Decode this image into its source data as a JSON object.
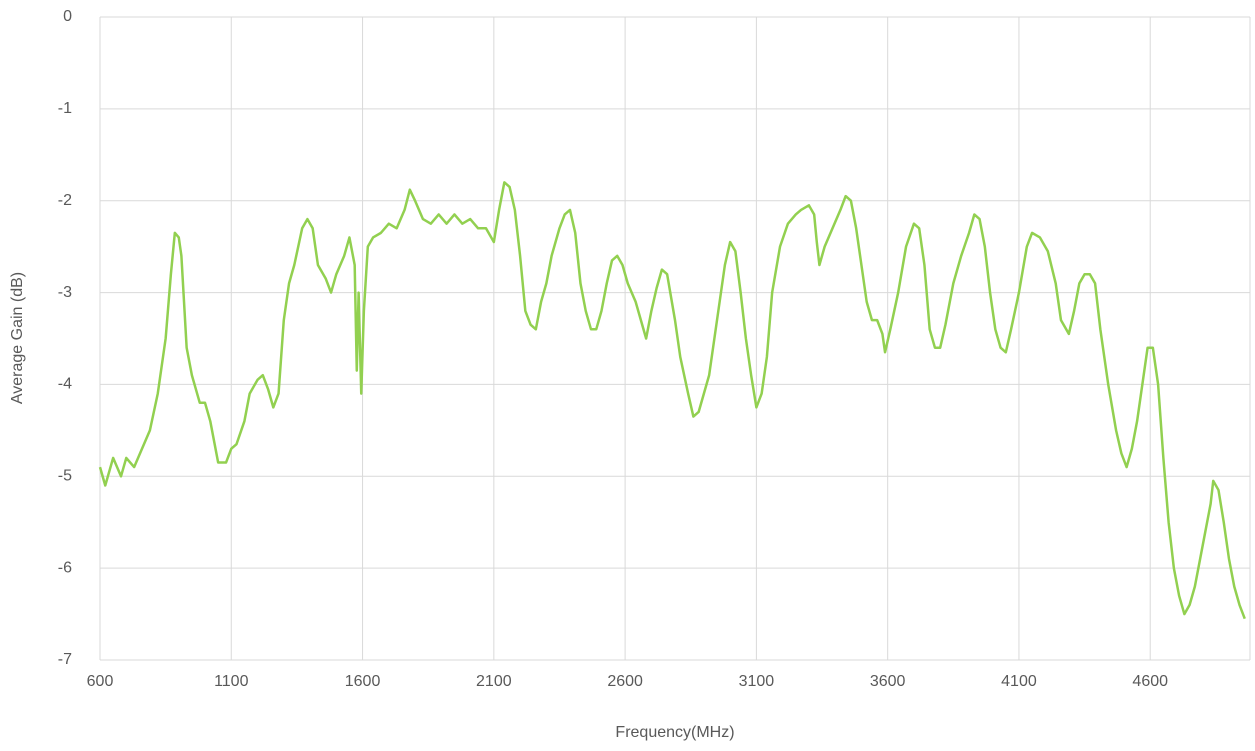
{
  "chart_data": {
    "type": "line",
    "x_label": "Frequency(MHz)",
    "y_label": "Average Gain (dB)",
    "xlim": [
      600,
      4980
    ],
    "xticks": [
      600,
      1100,
      1600,
      2100,
      2600,
      3100,
      3600,
      4100,
      4600
    ],
    "ylim": [
      -7,
      0
    ],
    "yticks": [
      0,
      -1,
      -2,
      -3,
      -4,
      -5,
      -6,
      -7
    ],
    "grid": true,
    "color": "#92d050",
    "x": [
      600,
      620,
      650,
      680,
      700,
      730,
      760,
      790,
      820,
      850,
      870,
      885,
      900,
      910,
      930,
      950,
      980,
      1000,
      1020,
      1050,
      1080,
      1100,
      1120,
      1150,
      1170,
      1200,
      1220,
      1240,
      1260,
      1280,
      1300,
      1320,
      1340,
      1370,
      1390,
      1410,
      1430,
      1460,
      1480,
      1500,
      1530,
      1550,
      1570,
      1578,
      1585,
      1595,
      1605,
      1620,
      1640,
      1670,
      1700,
      1730,
      1760,
      1780,
      1800,
      1830,
      1860,
      1890,
      1920,
      1950,
      1980,
      2010,
      2040,
      2070,
      2100,
      2120,
      2140,
      2160,
      2180,
      2200,
      2220,
      2240,
      2260,
      2280,
      2300,
      2320,
      2350,
      2370,
      2390,
      2410,
      2430,
      2450,
      2470,
      2490,
      2510,
      2530,
      2550,
      2570,
      2590,
      2610,
      2640,
      2660,
      2680,
      2700,
      2720,
      2740,
      2760,
      2790,
      2810,
      2840,
      2860,
      2880,
      2900,
      2920,
      2950,
      2980,
      3000,
      3020,
      3040,
      3060,
      3080,
      3100,
      3120,
      3140,
      3160,
      3190,
      3220,
      3250,
      3270,
      3300,
      3320,
      3330,
      3340,
      3360,
      3390,
      3420,
      3440,
      3460,
      3480,
      3500,
      3520,
      3540,
      3560,
      3580,
      3590,
      3610,
      3640,
      3670,
      3700,
      3720,
      3740,
      3760,
      3780,
      3800,
      3820,
      3850,
      3880,
      3910,
      3930,
      3950,
      3970,
      3990,
      4010,
      4030,
      4050,
      4070,
      4100,
      4130,
      4150,
      4180,
      4210,
      4240,
      4260,
      4290,
      4310,
      4330,
      4350,
      4370,
      4390,
      4410,
      4440,
      4470,
      4490,
      4510,
      4530,
      4550,
      4570,
      4590,
      4610,
      4630,
      4650,
      4670,
      4690,
      4710,
      4730,
      4750,
      4770,
      4790,
      4810,
      4830,
      4840,
      4860,
      4880,
      4900,
      4920,
      4940,
      4960
    ],
    "values": [
      -4.9,
      -5.1,
      -4.8,
      -5.0,
      -4.8,
      -4.9,
      -4.7,
      -4.5,
      -4.1,
      -3.5,
      -2.8,
      -2.35,
      -2.4,
      -2.6,
      -3.6,
      -3.9,
      -4.2,
      -4.2,
      -4.4,
      -4.85,
      -4.85,
      -4.7,
      -4.65,
      -4.4,
      -4.1,
      -3.95,
      -3.9,
      -4.05,
      -4.25,
      -4.1,
      -3.3,
      -2.9,
      -2.7,
      -2.3,
      -2.2,
      -2.3,
      -2.7,
      -2.85,
      -3.0,
      -2.8,
      -2.6,
      -2.4,
      -2.7,
      -3.85,
      -3.0,
      -4.1,
      -3.2,
      -2.5,
      -2.4,
      -2.35,
      -2.25,
      -2.3,
      -2.1,
      -1.88,
      -2.0,
      -2.2,
      -2.25,
      -2.15,
      -2.25,
      -2.15,
      -2.25,
      -2.2,
      -2.3,
      -2.3,
      -2.45,
      -2.1,
      -1.8,
      -1.85,
      -2.1,
      -2.6,
      -3.2,
      -3.35,
      -3.4,
      -3.1,
      -2.9,
      -2.6,
      -2.3,
      -2.15,
      -2.1,
      -2.35,
      -2.9,
      -3.2,
      -3.4,
      -3.4,
      -3.2,
      -2.9,
      -2.65,
      -2.6,
      -2.7,
      -2.9,
      -3.1,
      -3.3,
      -3.5,
      -3.2,
      -2.95,
      -2.75,
      -2.8,
      -3.3,
      -3.7,
      -4.1,
      -4.35,
      -4.3,
      -4.1,
      -3.9,
      -3.3,
      -2.7,
      -2.45,
      -2.55,
      -3.0,
      -3.5,
      -3.9,
      -4.25,
      -4.1,
      -3.7,
      -3.0,
      -2.5,
      -2.25,
      -2.15,
      -2.1,
      -2.05,
      -2.15,
      -2.45,
      -2.7,
      -2.5,
      -2.3,
      -2.1,
      -1.95,
      -2.0,
      -2.3,
      -2.7,
      -3.1,
      -3.3,
      -3.3,
      -3.45,
      -3.65,
      -3.4,
      -3.0,
      -2.5,
      -2.25,
      -2.3,
      -2.7,
      -3.4,
      -3.6,
      -3.6,
      -3.35,
      -2.9,
      -2.6,
      -2.35,
      -2.15,
      -2.2,
      -2.5,
      -3.0,
      -3.4,
      -3.6,
      -3.65,
      -3.4,
      -3.0,
      -2.5,
      -2.35,
      -2.4,
      -2.55,
      -2.9,
      -3.3,
      -3.45,
      -3.2,
      -2.9,
      -2.8,
      -2.8,
      -2.9,
      -3.4,
      -4.0,
      -4.5,
      -4.75,
      -4.9,
      -4.7,
      -4.4,
      -4.0,
      -3.6,
      -3.6,
      -4.0,
      -4.8,
      -5.5,
      -6.0,
      -6.3,
      -6.5,
      -6.4,
      -6.2,
      -5.9,
      -5.6,
      -5.3,
      -5.05,
      -5.15,
      -5.5,
      -5.9,
      -6.2,
      -6.4,
      -6.55
    ]
  }
}
